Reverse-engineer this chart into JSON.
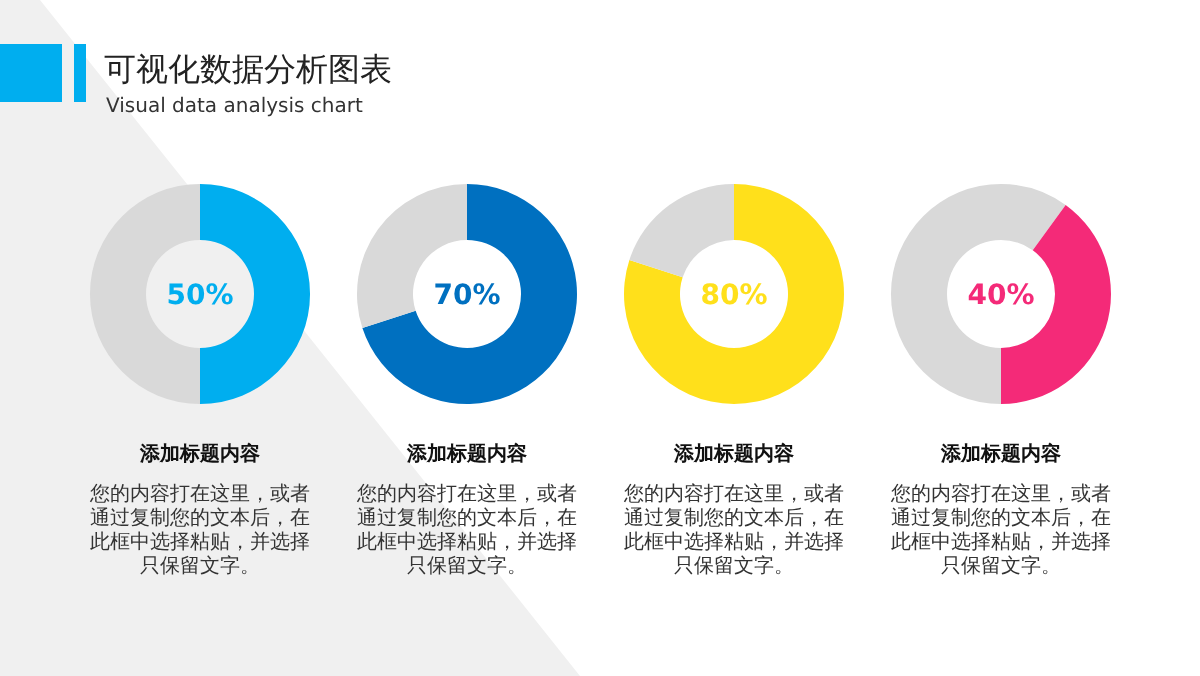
{
  "chart_data": [
    {
      "type": "other",
      "title": "可视化数据分析图表",
      "subtitle": "Visual data analysis chart"
    },
    {
      "type": "donut",
      "title": "添加标题内容",
      "categories": [
        null,
        null
      ],
      "values": [
        50,
        50
      ],
      "colors": [
        "#00aeef",
        "#d9d9d9"
      ],
      "value_labels": [
        "50%",
        null
      ],
      "annotations": [
        "您的内容打在这里，或者通过复制您的文本后，在此框中选择粘贴，并选择只保留文字。"
      ]
    },
    {
      "type": "donut",
      "title": "添加标题内容",
      "categories": [
        null,
        null
      ],
      "values": [
        70,
        30
      ],
      "colors": [
        "#0070c0",
        "#d9d9d9"
      ],
      "value_labels": [
        "70%",
        null
      ],
      "annotations": [
        "您的内容打在这里，或者通过复制您的文本后，在此框中选择粘贴，并选择只保留文字。"
      ]
    },
    {
      "type": "donut",
      "title": "添加标题内容",
      "categories": [
        null,
        null
      ],
      "values": [
        80,
        20
      ],
      "colors": [
        "#ffe01b",
        "#d9d9d9"
      ],
      "value_labels": [
        "80%",
        null
      ],
      "annotations": [
        "您的内容打在这里，或者通过复制您的文本后，在此框中选择粘贴，并选择只保留文字。"
      ]
    },
    {
      "type": "donut",
      "title": "添加标题内容",
      "categories": [
        null,
        null,
        null
      ],
      "values": [
        10,
        40,
        50
      ],
      "colors": [
        "#d9d9d9",
        "#f42a78",
        "#d9d9d9"
      ],
      "value_labels": [
        null,
        "40%",
        null
      ],
      "annotations": [
        "您的内容打在这里，或者通过复制您的文本后，在此框中选择粘贴，并选择只保留文字。"
      ]
    }
  ]
}
